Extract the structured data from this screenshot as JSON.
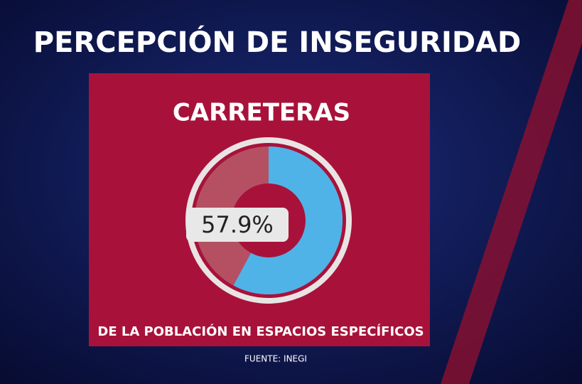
{
  "chart_data": {
    "type": "donut",
    "title": "PERCEPCIÓN DE INSEGURIDAD",
    "subtitle": "CARRETERAS",
    "values": [
      57.9
    ],
    "value_labels": [
      "57.9%"
    ],
    "color": "#4fb3e8",
    "caption": "DE LA POBLACIÓN EN ESPACIOS ESPECÍFICOS",
    "source": "FUENTE: INEGI"
  }
}
